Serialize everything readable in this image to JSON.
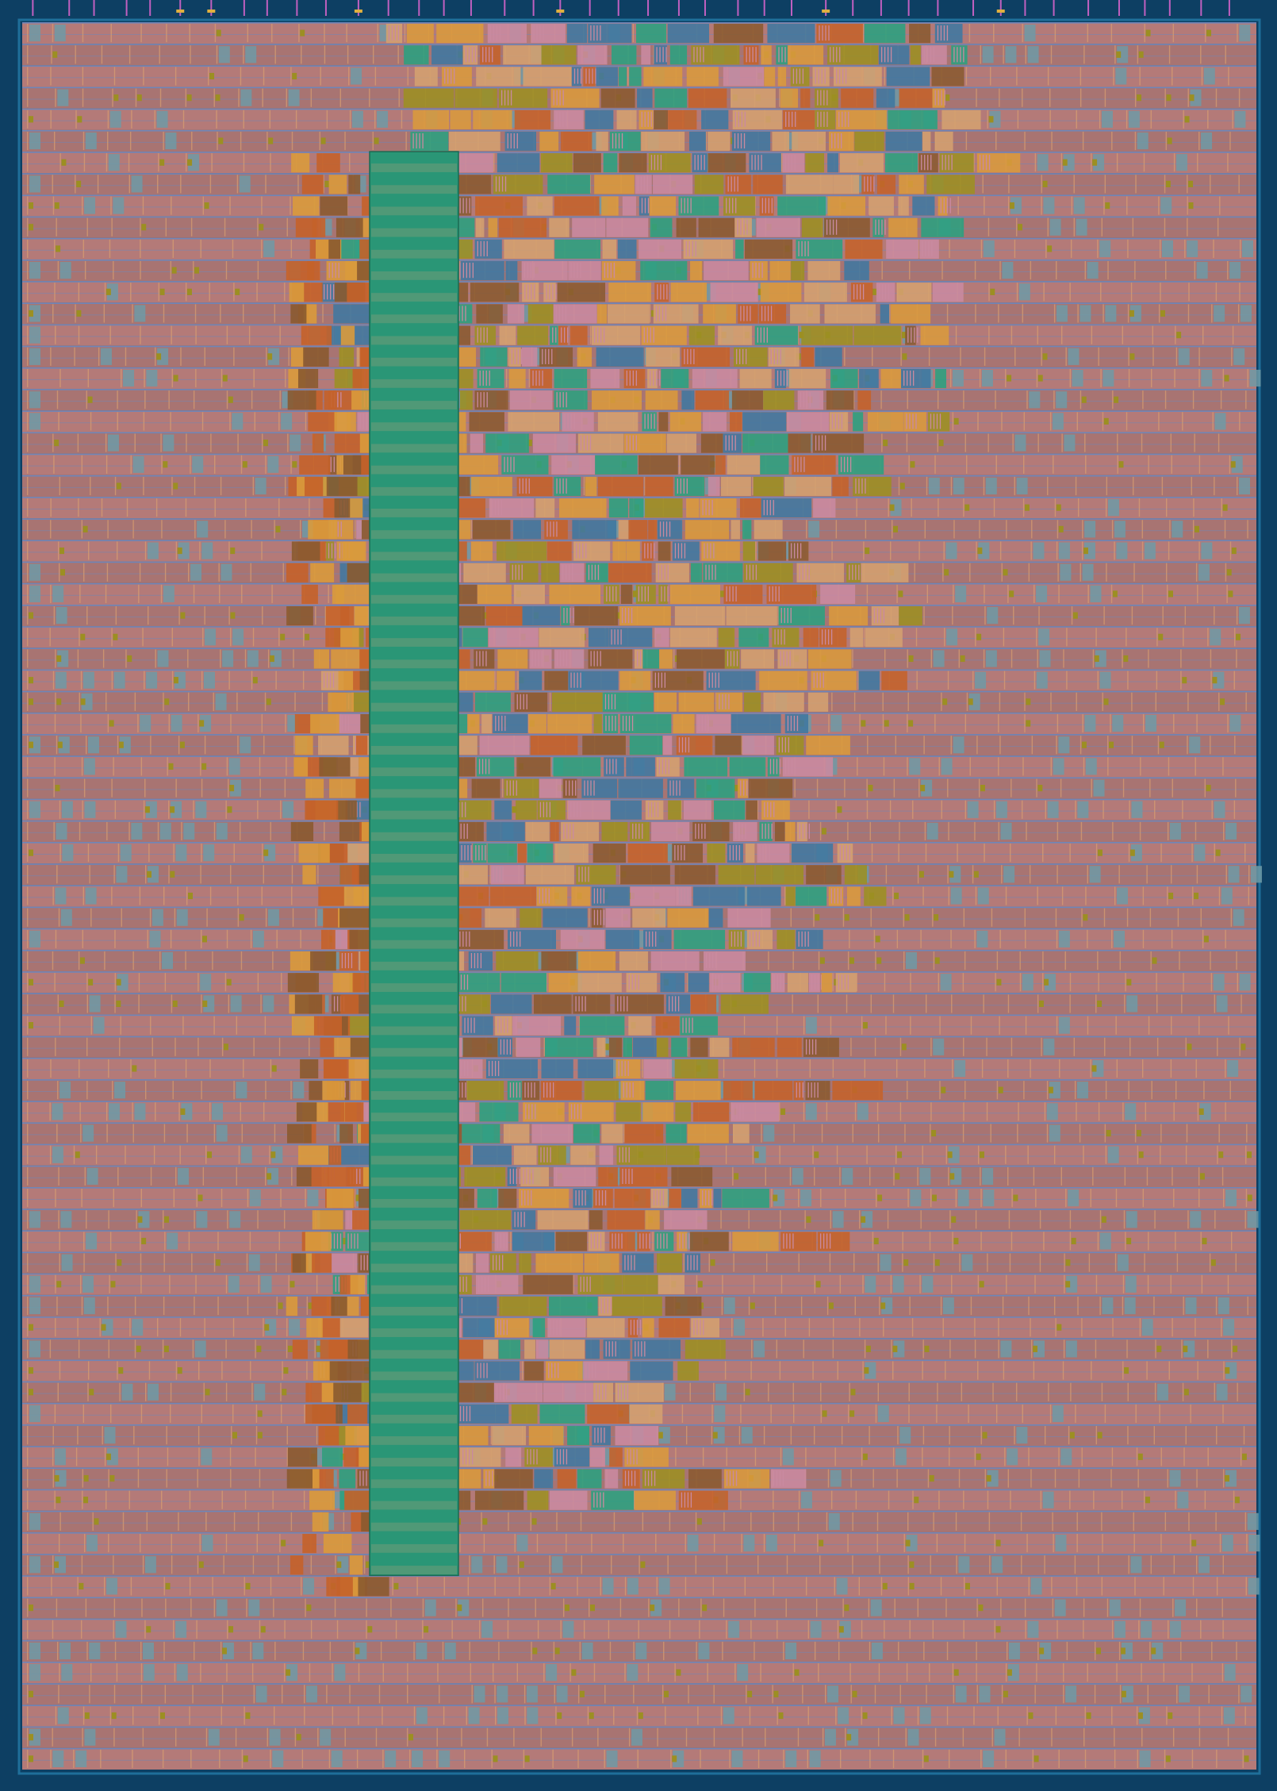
{
  "layout": {
    "colors": {
      "background": "#0d3f63",
      "die_outline": "#1f6f9a",
      "row_fill": "#b47a78",
      "row_fill_alt": "#a87472",
      "power_rail": "#6f86b8",
      "rail_accent": "#d8a070",
      "filler_cell": "#6e9aa6",
      "macro_strip": "#2a9676",
      "macro_strip_light": "#5a9a78",
      "logic_orange": "#d99a3c",
      "logic_olive": "#9c8f22",
      "logic_brown": "#8a5a30",
      "logic_blue": "#3f77a0",
      "logic_teal": "#2aa080",
      "logic_pink": "#c98aa0",
      "logic_tan": "#d4a070",
      "logic_rust": "#c4622a",
      "pin_magenta": "#c060c0",
      "pin_gold": "#e0b040"
    },
    "row_count": 81,
    "pin_count": 42
  }
}
